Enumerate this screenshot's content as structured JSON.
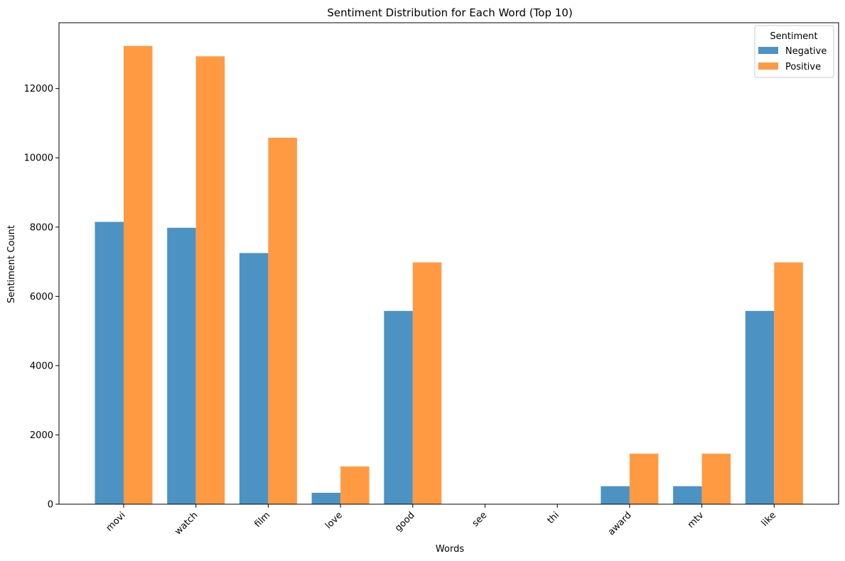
{
  "chart_data": {
    "type": "bar",
    "title": "Sentiment Distribution for Each Word (Top 10)",
    "xlabel": "Words",
    "ylabel": "Sentiment Count",
    "categories": [
      "movi",
      "watch",
      "film",
      "love",
      "good",
      "see",
      "thi",
      "award",
      "mtv",
      "like"
    ],
    "series": [
      {
        "name": "Negative",
        "color": "#4c93c3",
        "values": [
          8150,
          7980,
          7250,
          330,
          5580,
          0,
          0,
          520,
          520,
          5580
        ]
      },
      {
        "name": "Positive",
        "color": "#ff9a42",
        "values": [
          13230,
          12930,
          10580,
          1090,
          6980,
          0,
          0,
          1460,
          1460,
          6980
        ]
      }
    ],
    "ylim": [
      0,
      13900
    ],
    "yticks": [
      0,
      2000,
      4000,
      6000,
      8000,
      10000,
      12000
    ],
    "legend": {
      "title": "Sentiment",
      "placement": "top-right"
    },
    "grid": false
  }
}
